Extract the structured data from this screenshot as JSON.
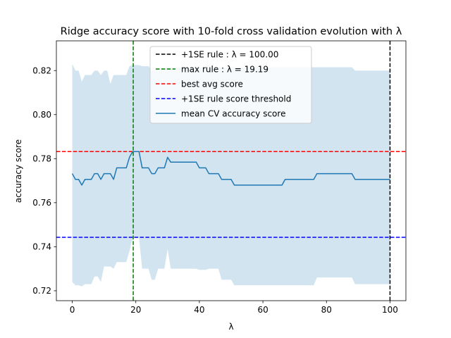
{
  "chart_data": {
    "type": "line",
    "title": "Ridge accuracy score with 10-fold cross validation evolution with λ",
    "xlabel": "λ",
    "ylabel": "accuracy score",
    "xlim": [
      -5,
      105
    ],
    "ylim": [
      0.7155,
      0.8335
    ],
    "x_ticks": [
      0,
      20,
      40,
      60,
      80,
      100
    ],
    "y_ticks": [
      0.72,
      0.74,
      0.76,
      0.78,
      0.8,
      0.82
    ],
    "x_tick_labels": [
      "0",
      "20",
      "40",
      "60",
      "80",
      "100"
    ],
    "y_tick_labels": [
      "0.72",
      "0.74",
      "0.76",
      "0.78",
      "0.80",
      "0.82"
    ],
    "grid": false,
    "legend_position": "top-center",
    "colors": {
      "mean": "#1f77b4",
      "band": "#1f77b4",
      "one_se_vline": "#000000",
      "max_vline": "#008000",
      "best_hline": "#ff0000",
      "threshold_hline": "#0000ff"
    },
    "legend": [
      {
        "key": "one_se",
        "label": "+1SE rule : λ = 100.00",
        "color": "#000000",
        "style": "dashed"
      },
      {
        "key": "max_rule",
        "label": "max rule : λ = 19.19",
        "color": "#008000",
        "style": "dashed"
      },
      {
        "key": "best_avg",
        "label": "best avg score",
        "color": "#ff0000",
        "style": "dashed"
      },
      {
        "key": "threshold",
        "label": "+1SE rule score threshold",
        "color": "#0000ff",
        "style": "dashed"
      },
      {
        "key": "mean_cv",
        "label": "mean CV accuracy score",
        "color": "#1f77b4",
        "style": "solid"
      }
    ],
    "vlines": [
      {
        "name": "one-se-rule",
        "x": 100.0,
        "color": "#000000"
      },
      {
        "name": "max-rule",
        "x": 19.19,
        "color": "#008000"
      }
    ],
    "hlines": [
      {
        "name": "best-avg-score",
        "y": 0.7832,
        "color": "#ff0000"
      },
      {
        "name": "one-se-threshold",
        "y": 0.7443,
        "color": "#0000ff"
      }
    ],
    "series": [
      {
        "name": "mean CV accuracy score",
        "x": [
          0,
          1,
          2,
          3,
          4,
          5,
          6,
          7,
          8,
          9,
          10,
          11,
          12,
          13,
          14,
          15,
          16,
          17,
          18,
          19,
          20,
          21,
          22,
          23,
          24,
          25,
          26,
          27,
          28,
          29,
          30,
          31,
          32,
          33,
          34,
          35,
          36,
          37,
          38,
          39,
          40,
          41,
          42,
          43,
          44,
          45,
          46,
          47,
          48,
          49,
          50,
          51,
          52,
          53,
          54,
          55,
          56,
          57,
          58,
          59,
          60,
          61,
          62,
          63,
          64,
          65,
          66,
          67,
          68,
          69,
          70,
          71,
          72,
          73,
          74,
          75,
          76,
          77,
          78,
          79,
          80,
          81,
          82,
          83,
          84,
          85,
          86,
          87,
          88,
          89,
          90,
          91,
          92,
          93,
          94,
          95,
          96,
          97,
          98,
          99,
          100
        ],
        "values": [
          0.7732,
          0.7706,
          0.7706,
          0.768,
          0.7706,
          0.7706,
          0.7706,
          0.7732,
          0.7732,
          0.7706,
          0.7732,
          0.7732,
          0.7732,
          0.7706,
          0.7758,
          0.7758,
          0.7758,
          0.7758,
          0.7806,
          0.7832,
          0.7832,
          0.7832,
          0.7758,
          0.7758,
          0.7758,
          0.7732,
          0.7732,
          0.7758,
          0.7758,
          0.7758,
          0.7806,
          0.7784,
          0.7784,
          0.7784,
          0.7784,
          0.7784,
          0.7784,
          0.7784,
          0.7784,
          0.7784,
          0.7758,
          0.7758,
          0.7758,
          0.7732,
          0.7732,
          0.7732,
          0.7732,
          0.7706,
          0.7706,
          0.7706,
          0.7706,
          0.768,
          0.768,
          0.768,
          0.768,
          0.768,
          0.768,
          0.768,
          0.768,
          0.768,
          0.768,
          0.768,
          0.768,
          0.768,
          0.768,
          0.768,
          0.768,
          0.7706,
          0.7706,
          0.7706,
          0.7706,
          0.7706,
          0.7706,
          0.7706,
          0.7706,
          0.7706,
          0.7706,
          0.7732,
          0.7732,
          0.7732,
          0.7732,
          0.7732,
          0.7732,
          0.7732,
          0.7732,
          0.7732,
          0.7732,
          0.7732,
          0.7732,
          0.7706,
          0.7706,
          0.7706,
          0.7706,
          0.7706,
          0.7706,
          0.7706,
          0.7706,
          0.7706,
          0.7706,
          0.7706,
          0.7706
        ]
      }
    ],
    "band": {
      "name": "cv score spread",
      "x": [
        0,
        1,
        2,
        3,
        4,
        5,
        6,
        7,
        8,
        9,
        10,
        11,
        12,
        13,
        14,
        15,
        16,
        17,
        18,
        19,
        20,
        21,
        22,
        23,
        24,
        25,
        26,
        27,
        28,
        29,
        30,
        31,
        32,
        33,
        34,
        35,
        36,
        37,
        38,
        39,
        40,
        41,
        42,
        43,
        44,
        45,
        46,
        47,
        48,
        49,
        50,
        51,
        52,
        53,
        54,
        55,
        56,
        57,
        58,
        59,
        60,
        61,
        62,
        63,
        64,
        65,
        66,
        67,
        68,
        69,
        70,
        71,
        72,
        73,
        74,
        75,
        76,
        77,
        78,
        79,
        80,
        81,
        82,
        83,
        84,
        85,
        86,
        87,
        88,
        89,
        90,
        91,
        92,
        93,
        94,
        95,
        96,
        97,
        98,
        99,
        100
      ],
      "upper": [
        0.823,
        0.82,
        0.82,
        0.815,
        0.818,
        0.818,
        0.818,
        0.82,
        0.82,
        0.818,
        0.82,
        0.82,
        0.814,
        0.818,
        0.818,
        0.818,
        0.818,
        0.818,
        0.822,
        0.8225,
        0.8225,
        0.8225,
        0.822,
        0.822,
        0.822,
        0.82,
        0.82,
        0.821,
        0.821,
        0.821,
        0.822,
        0.8215,
        0.8215,
        0.8215,
        0.8215,
        0.8215,
        0.8215,
        0.8215,
        0.8215,
        0.8215,
        0.8215,
        0.8215,
        0.8215,
        0.8215,
        0.8215,
        0.8215,
        0.8215,
        0.8215,
        0.8215,
        0.8215,
        0.8215,
        0.8215,
        0.8215,
        0.8215,
        0.8215,
        0.8215,
        0.8215,
        0.8215,
        0.8215,
        0.8215,
        0.8215,
        0.8215,
        0.8215,
        0.8215,
        0.8215,
        0.8215,
        0.8215,
        0.8215,
        0.8215,
        0.8215,
        0.8215,
        0.8215,
        0.8215,
        0.8215,
        0.8215,
        0.8215,
        0.8215,
        0.8215,
        0.8215,
        0.8215,
        0.8215,
        0.8215,
        0.8215,
        0.8215,
        0.8215,
        0.8215,
        0.8215,
        0.8215,
        0.8215,
        0.82,
        0.82,
        0.82,
        0.82,
        0.82,
        0.82,
        0.82,
        0.82,
        0.82,
        0.82,
        0.82,
        0.82
      ],
      "lower": [
        0.724,
        0.7225,
        0.7225,
        0.722,
        0.723,
        0.723,
        0.723,
        0.7265,
        0.7265,
        0.724,
        0.731,
        0.731,
        0.731,
        0.73,
        0.733,
        0.733,
        0.733,
        0.733,
        0.738,
        0.744,
        0.744,
        0.744,
        0.73,
        0.73,
        0.73,
        0.725,
        0.725,
        0.73,
        0.73,
        0.73,
        0.739,
        0.73,
        0.73,
        0.73,
        0.73,
        0.73,
        0.73,
        0.73,
        0.73,
        0.73,
        0.7295,
        0.7295,
        0.7295,
        0.73,
        0.73,
        0.73,
        0.73,
        0.725,
        0.725,
        0.725,
        0.725,
        0.7225,
        0.7225,
        0.7225,
        0.7225,
        0.7225,
        0.7225,
        0.7225,
        0.7225,
        0.7225,
        0.7225,
        0.7225,
        0.7225,
        0.7225,
        0.7225,
        0.7225,
        0.7225,
        0.7225,
        0.7225,
        0.7225,
        0.7225,
        0.7225,
        0.7225,
        0.7225,
        0.7225,
        0.7225,
        0.7225,
        0.726,
        0.726,
        0.726,
        0.726,
        0.726,
        0.726,
        0.726,
        0.726,
        0.726,
        0.726,
        0.726,
        0.726,
        0.723,
        0.723,
        0.723,
        0.723,
        0.723,
        0.723,
        0.723,
        0.723,
        0.723,
        0.723,
        0.723,
        0.723
      ]
    }
  }
}
